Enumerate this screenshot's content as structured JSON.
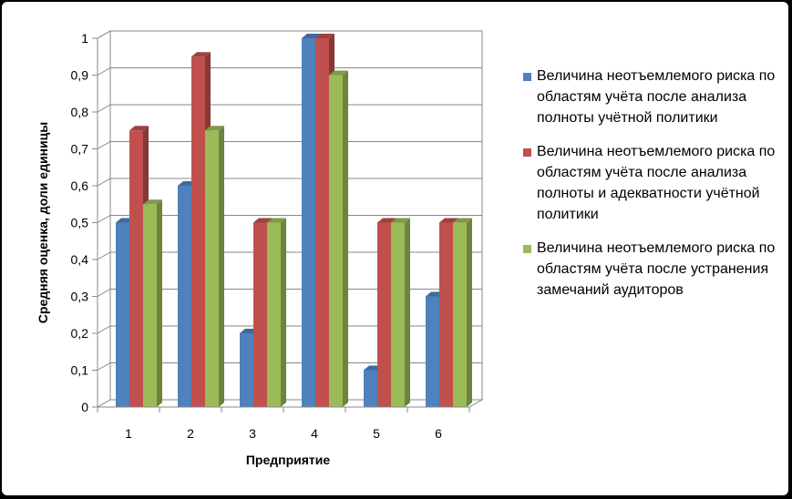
{
  "chart_data": {
    "type": "bar",
    "xlabel": "Предприятие",
    "ylabel": "Средняя оценка, доли единицы",
    "categories": [
      "1",
      "2",
      "3",
      "4",
      "5",
      "6"
    ],
    "ylim": [
      0,
      1
    ],
    "yticks": [
      "0",
      "0,1",
      "0,2",
      "0,3",
      "0,4",
      "0,5",
      "0,6",
      "0,7",
      "0,8",
      "0,9",
      "1"
    ],
    "grid": true,
    "legend_position": "right",
    "series": [
      {
        "name": "Величина неотъемлемого риска по областям учёта после анализа полноты учётной политики",
        "values": [
          0.5,
          0.6,
          0.2,
          1.0,
          0.1,
          0.3
        ],
        "color": "#4F81BD"
      },
      {
        "name": "Величина неотъемлемого риска по областям учёта после анализа полноты и адекватности учётной политики",
        "values": [
          0.75,
          0.95,
          0.5,
          1.0,
          0.5,
          0.5
        ],
        "color": "#C0504D"
      },
      {
        "name": "Величина неотъемлемого риска по областям учёта после устранения замечаний аудиторов",
        "values": [
          0.55,
          0.75,
          0.5,
          0.9,
          0.5,
          0.5
        ],
        "color": "#9BBB59"
      }
    ]
  }
}
